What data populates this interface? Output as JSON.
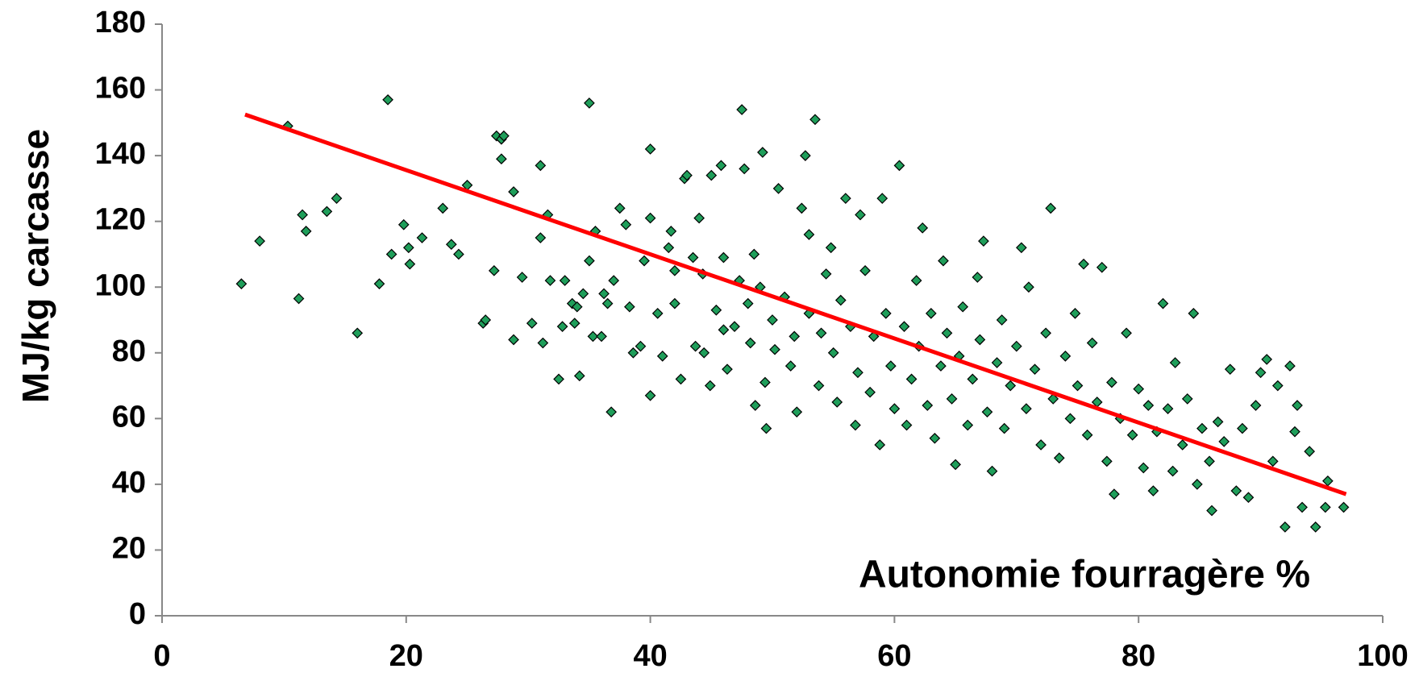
{
  "chart_data": {
    "type": "scatter",
    "x_label": "Autonomie fourragère %",
    "y_label": "MJ/kg carcasse",
    "xlim": [
      0,
      100
    ],
    "xticks": [
      0,
      20,
      40,
      60,
      80,
      100
    ],
    "ylim": [
      0,
      180
    ],
    "yticks": [
      0,
      20,
      40,
      60,
      80,
      100,
      120,
      140,
      160,
      180
    ],
    "x": [
      6.5,
      8,
      10.3,
      11.2,
      11.5,
      11.8,
      13.5,
      14.3,
      16,
      17.8,
      18.5,
      18.8,
      19.8,
      20.2,
      20.3,
      21.3,
      23,
      23.7,
      24.3,
      25,
      26.3,
      26.5,
      27.2,
      27.4,
      27.8,
      28,
      27.8,
      28.8,
      28.8,
      29.5,
      30.3,
      31,
      31.2,
      31,
      31.6,
      31.8,
      32.5,
      32.8,
      33,
      33.6,
      33.8,
      34,
      34.2,
      34.5,
      35,
      35,
      35.3,
      35.5,
      36,
      36.2,
      36.5,
      36.8,
      37,
      37.5,
      38,
      38.3,
      38.6,
      39.2,
      39.5,
      40,
      40,
      40,
      40.6,
      41,
      41.5,
      41.7,
      42,
      42,
      42.5,
      42.8,
      43,
      43.5,
      43.7,
      44,
      44.3,
      44.4,
      44.9,
      45,
      45.4,
      45.8,
      46,
      46,
      46.3,
      46.9,
      47.3,
      47.5,
      47.7,
      48,
      48.2,
      48.5,
      48.6,
      49,
      49.2,
      49.4,
      49.5,
      50,
      50.2,
      50.5,
      51,
      51.5,
      51.8,
      52,
      52.4,
      52.7,
      53,
      53,
      53.5,
      53.8,
      54,
      54.4,
      54.8,
      55,
      55.3,
      55.6,
      56,
      56.4,
      56.8,
      57,
      57.2,
      57.6,
      58,
      58.3,
      58.8,
      59,
      59.3,
      59.7,
      60,
      60.4,
      60.8,
      61,
      61.4,
      61.8,
      62,
      62.3,
      62.7,
      63,
      63.3,
      63.8,
      64,
      64.3,
      64.7,
      65,
      65.3,
      65.6,
      66,
      66.4,
      66.8,
      67,
      67.3,
      67.6,
      68,
      68.4,
      68.8,
      69,
      69.5,
      70,
      70.4,
      70.8,
      71,
      71.5,
      72,
      72.4,
      72.8,
      73,
      73.5,
      74,
      74.4,
      74.8,
      75,
      75.5,
      75.8,
      76.2,
      76.6,
      77,
      77.4,
      77.8,
      78,
      78.5,
      79,
      79.5,
      80,
      80.4,
      80.8,
      81.2,
      81.5,
      82,
      82.4,
      82.8,
      83,
      83.6,
      84,
      84.5,
      84.8,
      85.2,
      85.8,
      86,
      86.5,
      87,
      87.5,
      88,
      88.5,
      89,
      89.6,
      90,
      90.5,
      91,
      91.4,
      92,
      92.4,
      92.8,
      93,
      93.4,
      94,
      94.5,
      95.3,
      95.5,
      96.8
    ],
    "series": [
      {
        "color": "#1f9e5a",
        "values": [
          101,
          114,
          149,
          96.5,
          122,
          117,
          123,
          127,
          86,
          101,
          157,
          110,
          119,
          112,
          107,
          115,
          124,
          113,
          110,
          131,
          89,
          90,
          105,
          146,
          145,
          146,
          139,
          129,
          84,
          103,
          89,
          115,
          83,
          137,
          122,
          102,
          72,
          88,
          102,
          95,
          89,
          94,
          73,
          98,
          108,
          156,
          85,
          117,
          85,
          98,
          95,
          62,
          102,
          124,
          119,
          94,
          80,
          82,
          108,
          121,
          142,
          67,
          92,
          79,
          112,
          117,
          105,
          95,
          72,
          133,
          134,
          109,
          82,
          121,
          104,
          80,
          70,
          134,
          93,
          137,
          109,
          87,
          75,
          88,
          102,
          154,
          136,
          95,
          83,
          110,
          64,
          100,
          141,
          71,
          57,
          90,
          81,
          130,
          97,
          76,
          85,
          62,
          124,
          140,
          116,
          92,
          151,
          70,
          86,
          104,
          112,
          80,
          65,
          96,
          127,
          88,
          58,
          74,
          122,
          105,
          68,
          85,
          52,
          127,
          92,
          76,
          63,
          137,
          88,
          58,
          72,
          102,
          82,
          118,
          64,
          92,
          54,
          76,
          108,
          86,
          66,
          46,
          79,
          94,
          58,
          72,
          103,
          84,
          114,
          62,
          44,
          77,
          90,
          57,
          70,
          82,
          112,
          63,
          100,
          75,
          52,
          86,
          124,
          66,
          48,
          79,
          60,
          92,
          70,
          107,
          55,
          83,
          65,
          106,
          47,
          71,
          37,
          60,
          86,
          55,
          69,
          45,
          64,
          38,
          56,
          95,
          63,
          44,
          77,
          52,
          66,
          92,
          40,
          57,
          47,
          32,
          59,
          53,
          75,
          38,
          57,
          36,
          64,
          74,
          78,
          47,
          70,
          27,
          76,
          56,
          64,
          33,
          50,
          27,
          33,
          41,
          33
        ]
      },
      {
        "type": "line",
        "color": "#ff0000",
        "x": [
          6.8,
          97
        ],
        "values": [
          152.5,
          37
        ]
      }
    ]
  }
}
